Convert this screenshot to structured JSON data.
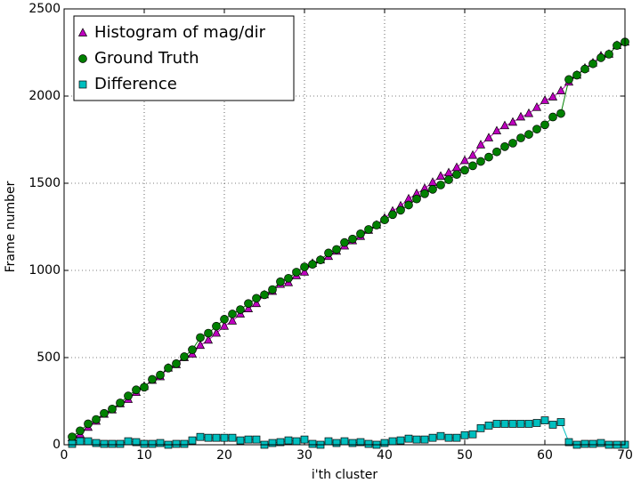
{
  "chart_data": {
    "type": "line",
    "xlabel": "i'th cluster",
    "ylabel": "Frame number",
    "x": [
      1,
      2,
      3,
      4,
      5,
      6,
      7,
      8,
      9,
      10,
      11,
      12,
      13,
      14,
      15,
      16,
      17,
      18,
      19,
      20,
      21,
      22,
      23,
      24,
      25,
      26,
      27,
      28,
      29,
      30,
      31,
      32,
      33,
      34,
      35,
      36,
      37,
      38,
      39,
      40,
      41,
      42,
      43,
      44,
      45,
      46,
      47,
      48,
      49,
      50,
      51,
      52,
      53,
      54,
      55,
      56,
      57,
      58,
      59,
      60,
      61,
      62,
      63,
      64,
      65,
      66,
      67,
      68,
      69,
      70
    ],
    "series": [
      {
        "name": "Histogram of mag/dir",
        "color": "#bf00bf",
        "marker": "triangle",
        "values": [
          40,
          60,
          100,
          135,
          175,
          200,
          235,
          260,
          300,
          335,
          370,
          390,
          440,
          460,
          500,
          520,
          570,
          600,
          640,
          680,
          710,
          750,
          780,
          810,
          860,
          880,
          920,
          930,
          970,
          990,
          1040,
          1060,
          1080,
          1110,
          1140,
          1170,
          1195,
          1230,
          1260,
          1300,
          1340,
          1370,
          1410,
          1440,
          1470,
          1505,
          1540,
          1560,
          1590,
          1630,
          1660,
          1720,
          1760,
          1800,
          1830,
          1850,
          1880,
          1900,
          1935,
          1975,
          1995,
          2030,
          2080,
          2120,
          2160,
          2190,
          2230,
          2240,
          2290,
          2310
        ]
      },
      {
        "name": "Ground Truth",
        "color": "#008000",
        "marker": "circle",
        "values": [
          45,
          80,
          120,
          145,
          180,
          205,
          240,
          280,
          315,
          330,
          375,
          400,
          440,
          465,
          505,
          545,
          615,
          640,
          680,
          720,
          750,
          775,
          810,
          840,
          860,
          890,
          935,
          955,
          990,
          1020,
          1035,
          1060,
          1100,
          1120,
          1160,
          1180,
          1210,
          1235,
          1260,
          1290,
          1320,
          1345,
          1375,
          1410,
          1440,
          1465,
          1490,
          1520,
          1550,
          1575,
          1600,
          1625,
          1650,
          1680,
          1710,
          1730,
          1760,
          1780,
          1810,
          1835,
          1880,
          1900,
          2095,
          2120,
          2155,
          2185,
          2220,
          2240,
          2290,
          2310
        ]
      },
      {
        "name": "Difference",
        "color": "#00bfbf",
        "marker": "square",
        "values": [
          5,
          20,
          20,
          10,
          5,
          5,
          5,
          20,
          15,
          5,
          5,
          10,
          0,
          5,
          5,
          25,
          45,
          40,
          40,
          40,
          40,
          25,
          30,
          30,
          0,
          10,
          15,
          25,
          20,
          30,
          5,
          0,
          20,
          10,
          20,
          10,
          15,
          5,
          0,
          10,
          20,
          25,
          35,
          30,
          30,
          40,
          50,
          40,
          40,
          55,
          60,
          95,
          110,
          120,
          120,
          120,
          120,
          120,
          125,
          140,
          115,
          130,
          15,
          0,
          5,
          5,
          10,
          0,
          0,
          0
        ]
      }
    ],
    "xlim": [
      0,
      70
    ],
    "xticks": [
      0,
      10,
      20,
      30,
      40,
      50,
      60,
      70
    ],
    "ylim": [
      0,
      2500
    ],
    "yticks": [
      0,
      500,
      1000,
      1500,
      2000,
      2500
    ],
    "grid": true,
    "legend": "upper left"
  }
}
